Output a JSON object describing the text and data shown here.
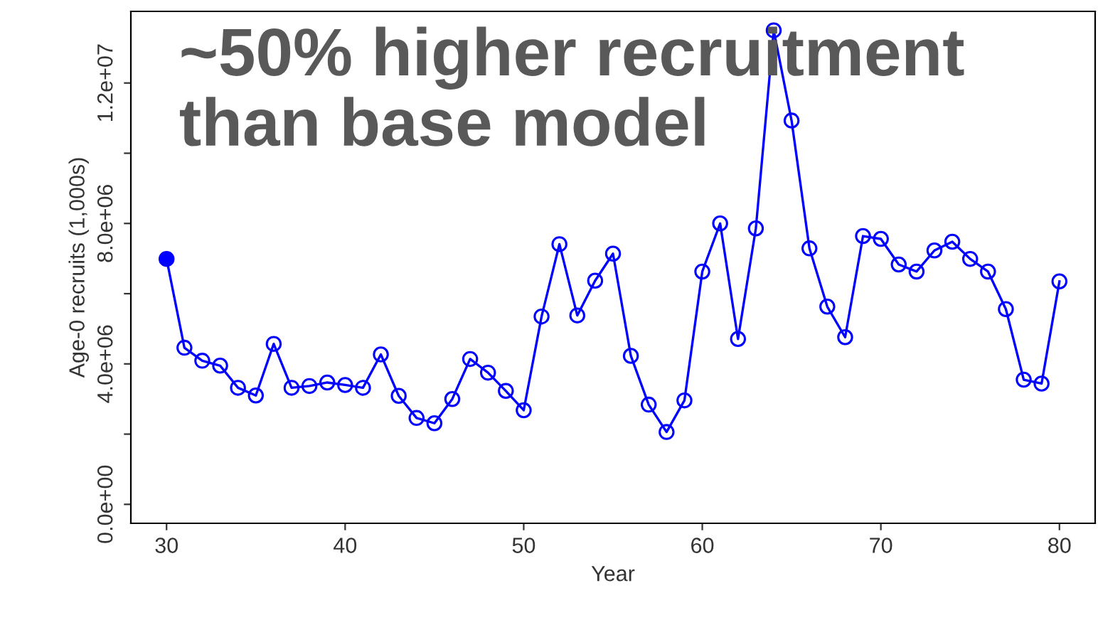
{
  "chart_data": {
    "type": "line",
    "xlabel": "Year",
    "ylabel": "Age-0 recruits (1,000s)",
    "annotations": [
      "~50% higher recruitment\nthan base model"
    ],
    "x": [
      30,
      31,
      32,
      33,
      34,
      35,
      36,
      37,
      38,
      39,
      40,
      41,
      42,
      43,
      44,
      45,
      46,
      47,
      48,
      49,
      50,
      51,
      52,
      53,
      54,
      55,
      56,
      57,
      58,
      59,
      60,
      61,
      62,
      63,
      64,
      65,
      66,
      67,
      68,
      69,
      70,
      71,
      72,
      73,
      74,
      75,
      76,
      77,
      78,
      79,
      80
    ],
    "series": [
      {
        "color": "#0000ff",
        "marker": "circle",
        "values": [
          6990000,
          4460000,
          4090000,
          3950000,
          3320000,
          3100000,
          4570000,
          3320000,
          3370000,
          3470000,
          3400000,
          3320000,
          4270000,
          3090000,
          2460000,
          2310000,
          3000000,
          4140000,
          3750000,
          3230000,
          2680000,
          5350000,
          7410000,
          5380000,
          6370000,
          7140000,
          4230000,
          2840000,
          2060000,
          2960000,
          6630000,
          8000000,
          4710000,
          7860000,
          13500000,
          10930000,
          7290000,
          5630000,
          4760000,
          7640000,
          7560000,
          6830000,
          6630000,
          7230000,
          7480000,
          6990000,
          6630000,
          5560000,
          3550000,
          3440000,
          6350000
        ]
      },
      {
        "type": "scatter",
        "color": "#0000ff",
        "marker": "circle",
        "x": [
          30
        ],
        "values": [
          6990000
        ]
      }
    ],
    "xlim": [
      28,
      82
    ],
    "xticks": [
      30,
      40,
      50,
      60,
      70,
      80
    ],
    "ylim": [
      -540000,
      14040000
    ],
    "yticks": [
      {
        "value": 0,
        "label": "0.0e+00"
      },
      {
        "value": 2000000,
        "label": null
      },
      {
        "value": 4000000,
        "label": "4.0e+06"
      },
      {
        "value": 6000000,
        "label": null
      },
      {
        "value": 8000000,
        "label": "8.0e+06"
      },
      {
        "value": 10000000,
        "label": null
      },
      {
        "value": 12000000,
        "label": "1.2e+07"
      }
    ],
    "grid": false,
    "legend": false
  }
}
